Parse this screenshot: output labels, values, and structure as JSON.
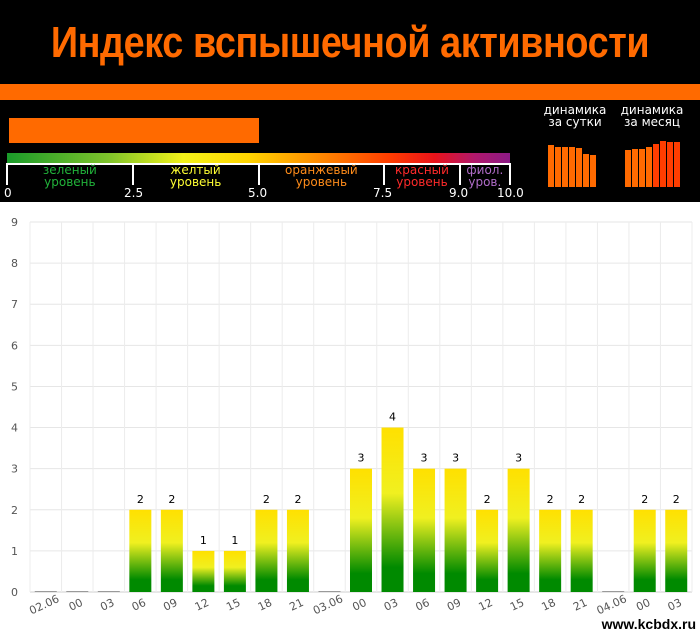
{
  "header": {
    "title": "Индекс вспышечной активности",
    "index_value": 5.0,
    "colors": {
      "background": "#000000",
      "accent": "#ff6a00"
    },
    "levels": [
      {
        "line1": "зеленый",
        "line2": "уровень",
        "color": "#21b33a",
        "from": 0,
        "to": 2.5
      },
      {
        "line1": "желтый",
        "line2": "уровень",
        "color": "#ffff33",
        "from": 2.5,
        "to": 5.0
      },
      {
        "line1": "оранжевый",
        "line2": "уровень",
        "color": "#ff8c1a",
        "from": 5.0,
        "to": 7.5
      },
      {
        "line1": "красный",
        "line2": "уровень",
        "color": "#ff2a2a",
        "from": 7.5,
        "to": 9.0
      },
      {
        "line1": "фиол.",
        "line2": "уров.",
        "color": "#b06cc9",
        "from": 9.0,
        "to": 10.0
      }
    ],
    "scale_labels": [
      "0",
      "2.5",
      "5.0",
      "7.5",
      "9.0",
      "10.0"
    ],
    "dynamics_day": {
      "line1": "динамика",
      "line2": "за сутки",
      "values": [
        5.0,
        4.8,
        4.8,
        4.8,
        4.7,
        4.0,
        3.8
      ]
    },
    "dynamics_month": {
      "line1": "динамика",
      "line2": "за месяц",
      "values": [
        4.4,
        4.5,
        4.5,
        4.8,
        5.1,
        5.5,
        5.4,
        5.4
      ]
    }
  },
  "chart_data": {
    "type": "bar",
    "categories": [
      "02.06",
      "00",
      "03",
      "06",
      "09",
      "12",
      "15",
      "18",
      "21",
      "03.06",
      "00",
      "03",
      "06",
      "09",
      "12",
      "15",
      "18",
      "21",
      "04.06",
      "00",
      "03"
    ],
    "values": [
      0,
      0,
      0,
      2,
      2,
      1,
      1,
      2,
      2,
      0,
      3,
      4,
      3,
      3,
      2,
      3,
      2,
      2,
      0,
      2,
      2
    ],
    "ylim": [
      0,
      9
    ],
    "yticks": [
      "0",
      "1",
      "2",
      "3",
      "4",
      "5",
      "6",
      "7",
      "8",
      "9"
    ],
    "grid": true,
    "bar_gradient": {
      "top": "#ffe000",
      "middle": "#f0f020",
      "bottom": "#008a00"
    },
    "label_color": "#000000"
  },
  "watermark": "www.kcbdx.ru"
}
